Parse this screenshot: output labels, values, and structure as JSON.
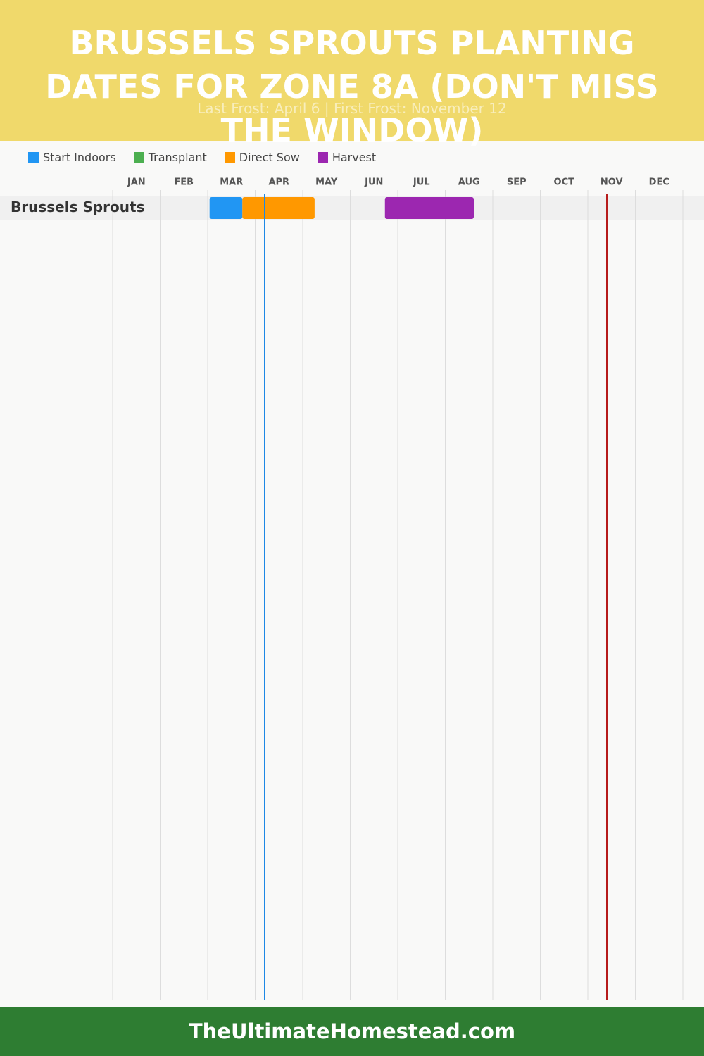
{
  "chart_data": {
    "type": "gantt",
    "title": "BRUSSELS SPROUTS PLANTING DATES FOR ZONE 8A (DON'T MISS THE WINDOW)",
    "subtitle": "Last Frost: April 6 | First Frost: November 12",
    "categories": [
      "Brussels Sprouts"
    ],
    "series": [
      {
        "name": "Start Indoors",
        "color": "#2196f3",
        "values": [
          [
            2.04,
            2.73
          ]
        ]
      },
      {
        "name": "Transplant",
        "color": "#4caf50",
        "values": [
          null
        ]
      },
      {
        "name": "Direct Sow",
        "color": "#ff9800",
        "values": [
          [
            2.73,
            4.25
          ]
        ]
      },
      {
        "name": "Harvest",
        "color": "#9c27b0",
        "values": [
          [
            5.73,
            7.6
          ]
        ]
      }
    ],
    "xlim": [
      0,
      12
    ],
    "xticks": [
      {
        "value": 0.5,
        "label": "JAN"
      },
      {
        "value": 1.5,
        "label": "FEB"
      },
      {
        "value": 2.5,
        "label": "MAR"
      },
      {
        "value": 3.5,
        "label": "APR"
      },
      {
        "value": 4.5,
        "label": "MAY"
      },
      {
        "value": 5.5,
        "label": "JUN"
      },
      {
        "value": 6.5,
        "label": "JUL"
      },
      {
        "value": 7.5,
        "label": "AUG"
      },
      {
        "value": 8.5,
        "label": "SEP"
      },
      {
        "value": 9.5,
        "label": "OCT"
      },
      {
        "value": 10.5,
        "label": "NOV"
      },
      {
        "value": 11.5,
        "label": "DEC"
      }
    ],
    "frost_lines": [
      {
        "value": 3.2,
        "color": "#1e88e5"
      },
      {
        "value": 10.4,
        "color": "#b71c1c"
      }
    ],
    "grid": true,
    "footer": "TheUltimateHomestead.com"
  }
}
